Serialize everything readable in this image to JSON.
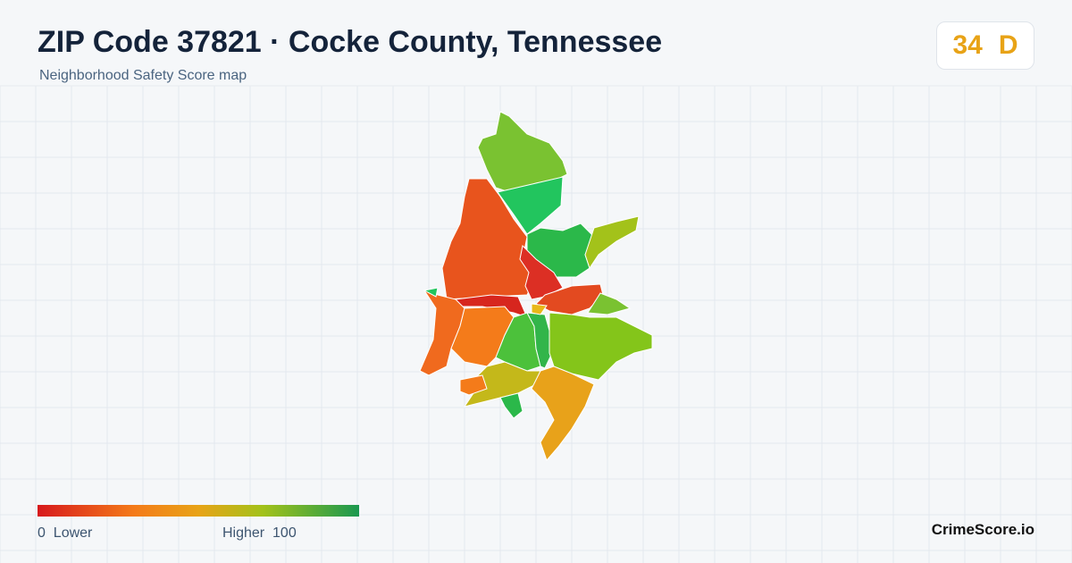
{
  "header": {
    "title": "ZIP Code 37821 · Cocke County, Tennessee",
    "subtitle": "Neighborhood Safety Score map"
  },
  "score": {
    "value": 34,
    "grade": "D"
  },
  "legend": {
    "min": 0,
    "min_label": "Lower",
    "max_label": "Higher",
    "max": 100
  },
  "brand": "CrimeScore.io"
}
